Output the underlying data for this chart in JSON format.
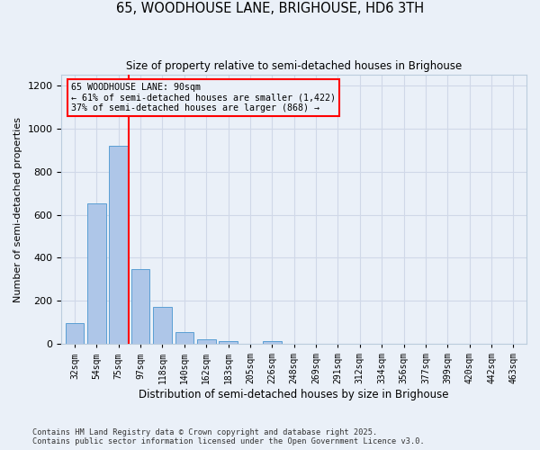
{
  "title1": "65, WOODHOUSE LANE, BRIGHOUSE, HD6 3TH",
  "title2": "Size of property relative to semi-detached houses in Brighouse",
  "xlabel": "Distribution of semi-detached houses by size in Brighouse",
  "ylabel": "Number of semi-detached properties",
  "bar_labels": [
    "32sqm",
    "54sqm",
    "75sqm",
    "97sqm",
    "118sqm",
    "140sqm",
    "162sqm",
    "183sqm",
    "205sqm",
    "226sqm",
    "248sqm",
    "269sqm",
    "291sqm",
    "312sqm",
    "334sqm",
    "356sqm",
    "377sqm",
    "399sqm",
    "420sqm",
    "442sqm",
    "463sqm"
  ],
  "bar_values": [
    96,
    651,
    921,
    347,
    170,
    57,
    20,
    13,
    0,
    13,
    0,
    0,
    0,
    0,
    0,
    0,
    0,
    0,
    0,
    0,
    0
  ],
  "bar_color": "#aec6e8",
  "bar_edge_color": "#5a9fd4",
  "property_line_color": "red",
  "annotation_title": "65 WOODHOUSE LANE: 90sqm",
  "annotation_line1": "← 61% of semi-detached houses are smaller (1,422)",
  "annotation_line2": "37% of semi-detached houses are larger (868) →",
  "annotation_box_color": "red",
  "ylim": [
    0,
    1250
  ],
  "yticks": [
    0,
    200,
    400,
    600,
    800,
    1000,
    1200
  ],
  "grid_color": "#d0d8e8",
  "background_color": "#eaf0f8",
  "footer1": "Contains HM Land Registry data © Crown copyright and database right 2025.",
  "footer2": "Contains public sector information licensed under the Open Government Licence v3.0."
}
